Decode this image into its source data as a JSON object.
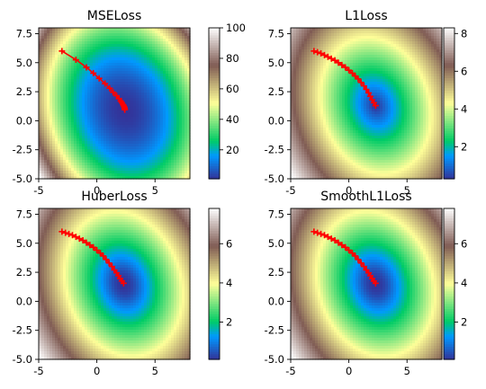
{
  "chart_data": [
    {
      "type": "heatmap",
      "title": "MSELoss",
      "xlim": [
        -5,
        8
      ],
      "ylim": [
        -5,
        8
      ],
      "xticks": [
        -5,
        0,
        5
      ],
      "yticks": [
        -5.0,
        -2.5,
        0.0,
        2.5,
        5.0,
        7.5
      ],
      "xtick_labels": [
        "-5",
        "0",
        "5"
      ],
      "ytick_labels": [
        "-5.0",
        "-2.5",
        "0.0",
        "2.5",
        "5.0",
        "7.5"
      ],
      "colormap": "terrain",
      "colorbar": {
        "range": [
          1,
          100
        ],
        "ticks": [
          20,
          40,
          60,
          80,
          100
        ],
        "tick_labels": [
          "20",
          "40",
          "60",
          "80",
          "100"
        ]
      },
      "surface": {
        "kind": "quadratic",
        "center": [
          2.4,
          0.9
        ],
        "ax": 0.75,
        "ay": 0.45,
        "rot": 0.3
      },
      "trajectory": {
        "marker": "+",
        "color": "#ff0000",
        "x": [
          -3.0,
          -1.8,
          -0.9,
          -0.3,
          0.2,
          0.7,
          1.1,
          1.4,
          1.7,
          1.9,
          2.05,
          2.15,
          2.25,
          2.3,
          2.35,
          2.38,
          2.4,
          2.4
        ],
        "y": [
          6.0,
          5.25,
          4.6,
          4.1,
          3.65,
          3.2,
          2.8,
          2.45,
          2.15,
          1.9,
          1.7,
          1.55,
          1.4,
          1.3,
          1.2,
          1.1,
          1.0,
          0.95
        ]
      }
    },
    {
      "type": "heatmap",
      "title": "L1Loss",
      "xlim": [
        -5,
        8
      ],
      "ylim": [
        -5,
        8
      ],
      "xticks": [
        -5,
        0,
        5
      ],
      "yticks": [
        -5.0,
        -2.5,
        0.0,
        2.5,
        5.0,
        7.5
      ],
      "xtick_labels": [
        "-5",
        "0",
        "5"
      ],
      "ytick_labels": [
        "-5.0",
        "-2.5",
        "0.0",
        "2.5",
        "5.0",
        "7.5"
      ],
      "colormap": "terrain",
      "colorbar": {
        "range": [
          0.3,
          8.3
        ],
        "ticks": [
          2,
          4,
          6,
          8
        ],
        "tick_labels": [
          "2",
          "4",
          "6",
          "8"
        ]
      },
      "surface": {
        "kind": "abs",
        "center": [
          2.3,
          1.3
        ],
        "ax": 0.75,
        "ay": 0.45,
        "rot": 0.3
      },
      "trajectory": {
        "marker": "+",
        "color": "#ff0000",
        "x": [
          -3.0,
          -2.7,
          -2.4,
          -2.1,
          -1.8,
          -1.5,
          -1.2,
          -0.9,
          -0.6,
          -0.3,
          0.0,
          0.3,
          0.55,
          0.8,
          1.05,
          1.3,
          1.5,
          1.7,
          1.85,
          2.0,
          2.15,
          2.3
        ],
        "y": [
          6.0,
          5.9,
          5.8,
          5.65,
          5.5,
          5.35,
          5.2,
          5.0,
          4.8,
          4.6,
          4.35,
          4.1,
          3.85,
          3.6,
          3.3,
          3.0,
          2.7,
          2.4,
          2.1,
          1.8,
          1.55,
          1.3
        ]
      }
    },
    {
      "type": "heatmap",
      "title": "HuberLoss",
      "xlim": [
        -5,
        8
      ],
      "ylim": [
        -5,
        8
      ],
      "xticks": [
        -5,
        0,
        5
      ],
      "yticks": [
        -5.0,
        -2.5,
        0.0,
        2.5,
        5.0,
        7.5
      ],
      "xtick_labels": [
        "-5",
        "0",
        "5"
      ],
      "ytick_labels": [
        "-5.0",
        "-2.5",
        "0.0",
        "2.5",
        "5.0",
        "7.5"
      ],
      "colormap": "terrain",
      "colorbar": {
        "range": [
          0.1,
          7.8
        ],
        "ticks": [
          2,
          4,
          6
        ],
        "tick_labels": [
          "2",
          "4",
          "6"
        ]
      },
      "surface": {
        "kind": "huber",
        "center": [
          2.3,
          1.5
        ],
        "ax": 0.75,
        "ay": 0.45,
        "rot": 0.3
      },
      "trajectory": {
        "marker": "+",
        "color": "#ff0000",
        "x": [
          -3.0,
          -2.7,
          -2.4,
          -2.1,
          -1.8,
          -1.5,
          -1.2,
          -0.9,
          -0.6,
          -0.3,
          0.0,
          0.3,
          0.55,
          0.8,
          1.05,
          1.3,
          1.5,
          1.7,
          1.85,
          2.0,
          2.15,
          2.3
        ],
        "y": [
          6.0,
          5.9,
          5.8,
          5.7,
          5.55,
          5.4,
          5.25,
          5.05,
          4.85,
          4.65,
          4.4,
          4.15,
          3.9,
          3.6,
          3.3,
          3.0,
          2.7,
          2.45,
          2.2,
          1.95,
          1.75,
          1.55
        ]
      }
    },
    {
      "type": "heatmap",
      "title": "SmoothL1Loss",
      "xlim": [
        -5,
        8
      ],
      "ylim": [
        -5,
        8
      ],
      "xticks": [
        -5,
        0,
        5
      ],
      "yticks": [
        -5.0,
        -2.5,
        0.0,
        2.5,
        5.0,
        7.5
      ],
      "xtick_labels": [
        "-5",
        "0",
        "5"
      ],
      "ytick_labels": [
        "-5.0",
        "-2.5",
        "0.0",
        "2.5",
        "5.0",
        "7.5"
      ],
      "colormap": "terrain",
      "colorbar": {
        "range": [
          0.1,
          7.8
        ],
        "ticks": [
          2,
          4,
          6
        ],
        "tick_labels": [
          "2",
          "4",
          "6"
        ]
      },
      "surface": {
        "kind": "huber",
        "center": [
          2.3,
          1.5
        ],
        "ax": 0.75,
        "ay": 0.45,
        "rot": 0.3
      },
      "trajectory": {
        "marker": "+",
        "color": "#ff0000",
        "x": [
          -3.0,
          -2.7,
          -2.4,
          -2.1,
          -1.8,
          -1.5,
          -1.2,
          -0.9,
          -0.6,
          -0.3,
          0.0,
          0.3,
          0.55,
          0.8,
          1.05,
          1.3,
          1.5,
          1.7,
          1.85,
          2.0,
          2.15,
          2.3
        ],
        "y": [
          6.0,
          5.9,
          5.8,
          5.7,
          5.55,
          5.4,
          5.25,
          5.05,
          4.85,
          4.65,
          4.4,
          4.15,
          3.9,
          3.6,
          3.3,
          3.0,
          2.7,
          2.45,
          2.2,
          1.95,
          1.75,
          1.55
        ]
      }
    }
  ]
}
